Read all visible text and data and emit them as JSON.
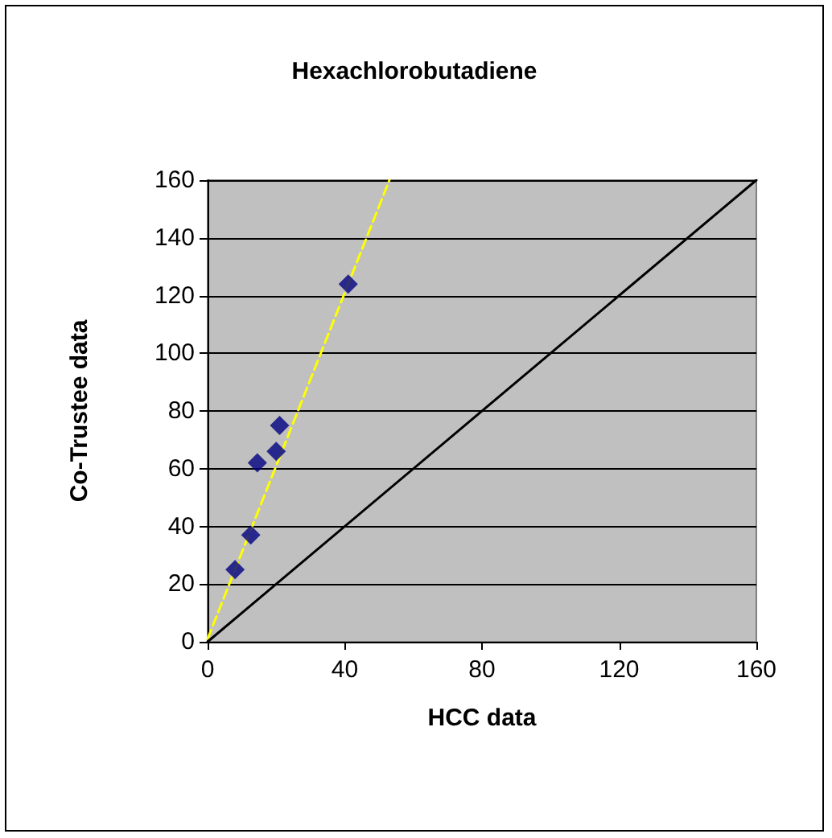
{
  "chart_data": {
    "type": "scatter",
    "title": "Hexachlorobutadiene",
    "xlabel": "HCC data",
    "ylabel": "Co-Trustee data",
    "series": [
      {
        "color": "#000080",
        "marker": "diamond",
        "x": [
          8,
          12.6,
          14.5,
          20,
          21,
          41
        ],
        "values": [
          25,
          37,
          62,
          66,
          75,
          124
        ]
      },
      {
        "type": "line",
        "color": "#ffff00",
        "marker": "none",
        "line_style": "dashed",
        "x": [
          0,
          53
        ],
        "values": [
          1,
          160
        ]
      },
      {
        "type": "line",
        "color": "#000000",
        "marker": "none",
        "line_style": "solid",
        "x": [
          0,
          160
        ],
        "values": [
          0,
          160
        ]
      }
    ],
    "xlim": [
      0,
      160
    ],
    "xticks": [
      0,
      40,
      80,
      120,
      160
    ],
    "ylim": [
      0,
      160
    ],
    "yticks": [
      0,
      20,
      40,
      60,
      80,
      100,
      120,
      140,
      160
    ],
    "grid": "y"
  }
}
